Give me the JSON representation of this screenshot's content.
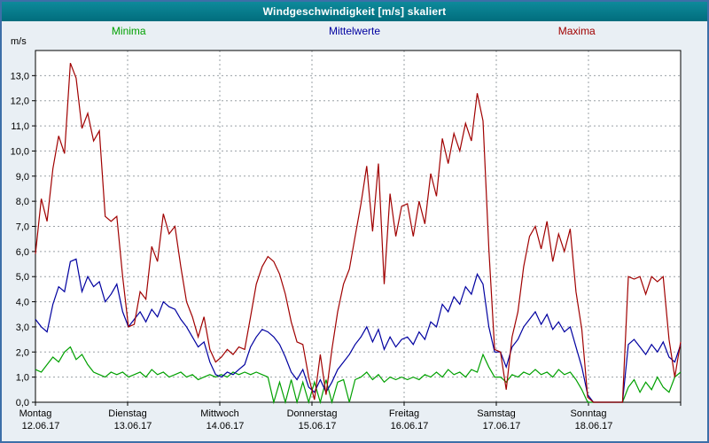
{
  "window": {
    "title": "Windgeschwindigkeit [m/s] skaliert"
  },
  "legend": [
    {
      "label": "Minima",
      "color": "#00a000"
    },
    {
      "label": "Mittelwerte",
      "color": "#0000a0"
    },
    {
      "label": "Maxima",
      "color": "#a00000"
    }
  ],
  "chart_data": {
    "type": "line",
    "title": "Windgeschwindigkeit [m/s] skaliert",
    "ylabel": "m/s",
    "ylim": [
      0,
      14
    ],
    "ytick_step": 1.0,
    "ytick_labels": [
      "0,0",
      "1,0",
      "2,0",
      "3,0",
      "4,0",
      "5,0",
      "6,0",
      "7,0",
      "8,0",
      "9,0",
      "10,0",
      "11,0",
      "12,0",
      "13,0"
    ],
    "grid": true,
    "legend_position": "top",
    "x_days": [
      {
        "weekday": "Montag",
        "date": "12.06.17"
      },
      {
        "weekday": "Dienstag",
        "date": "13.06.17"
      },
      {
        "weekday": "Mittwoch",
        "date": "14.06.17"
      },
      {
        "weekday": "Donnerstag",
        "date": "15.06.17"
      },
      {
        "weekday": "Freitag",
        "date": "16.06.17"
      },
      {
        "weekday": "Samstag",
        "date": "17.06.17"
      },
      {
        "weekday": "Sonntag",
        "date": "18.06.17"
      }
    ],
    "points_per_day": 16,
    "series": [
      {
        "name": "Minima",
        "color": "#00a000",
        "values": [
          1.3,
          1.2,
          1.5,
          1.8,
          1.6,
          2.0,
          2.2,
          1.7,
          1.9,
          1.5,
          1.2,
          1.1,
          1.0,
          1.2,
          1.1,
          1.2,
          1.0,
          1.1,
          1.2,
          1.0,
          1.3,
          1.1,
          1.2,
          1.0,
          1.1,
          1.2,
          1.0,
          1.1,
          0.9,
          1.0,
          1.1,
          1.0,
          1.1,
          1.0,
          1.2,
          1.1,
          1.2,
          1.1,
          1.2,
          1.1,
          1.0,
          0.0,
          0.8,
          0.0,
          0.9,
          0.0,
          0.8,
          0.0,
          0.8,
          0.0,
          0.9,
          0.0,
          0.8,
          0.9,
          0.0,
          0.9,
          1.0,
          1.2,
          0.9,
          1.1,
          0.8,
          1.0,
          0.9,
          1.0,
          0.9,
          1.0,
          0.9,
          1.1,
          1.0,
          1.2,
          1.0,
          1.3,
          1.1,
          1.2,
          1.0,
          1.3,
          1.2,
          1.9,
          1.4,
          1.0,
          1.0,
          0.8,
          1.1,
          1.0,
          1.2,
          1.1,
          1.3,
          1.1,
          1.2,
          1.0,
          1.3,
          1.1,
          1.2,
          0.9,
          0.5,
          0.0,
          0.0,
          0.0,
          0.0,
          0.0,
          0.0,
          0.0,
          0.6,
          0.9,
          0.4,
          0.8,
          0.5,
          1.0,
          0.6,
          0.4,
          1.0,
          1.2
        ]
      },
      {
        "name": "Mittelwerte",
        "color": "#0000a0",
        "values": [
          3.3,
          3.0,
          2.8,
          3.9,
          4.6,
          4.4,
          5.6,
          5.7,
          4.4,
          5.0,
          4.6,
          4.8,
          4.0,
          4.3,
          4.7,
          3.6,
          3.0,
          3.3,
          3.6,
          3.2,
          3.7,
          3.4,
          4.0,
          3.8,
          3.7,
          3.3,
          3.0,
          2.6,
          2.2,
          2.4,
          1.6,
          1.1,
          1.0,
          1.2,
          1.1,
          1.3,
          1.5,
          2.2,
          2.6,
          2.9,
          2.8,
          2.6,
          2.3,
          1.8,
          1.2,
          0.9,
          1.3,
          0.6,
          0.4,
          0.9,
          0.4,
          0.8,
          1.3,
          1.6,
          1.9,
          2.3,
          2.6,
          3.0,
          2.4,
          2.9,
          2.1,
          2.6,
          2.2,
          2.5,
          2.6,
          2.3,
          2.8,
          2.5,
          3.2,
          3.0,
          3.9,
          3.6,
          4.2,
          3.9,
          4.6,
          4.3,
          5.1,
          4.7,
          3.0,
          2.0,
          2.0,
          1.4,
          2.2,
          2.5,
          3.0,
          3.3,
          3.6,
          3.1,
          3.5,
          2.9,
          3.2,
          2.8,
          3.0,
          2.2,
          1.4,
          0.3,
          0.0,
          0.0,
          0.0,
          0.0,
          0.0,
          0.0,
          2.3,
          2.5,
          2.2,
          1.9,
          2.3,
          2.0,
          2.4,
          1.8,
          1.6,
          2.3
        ]
      },
      {
        "name": "Maxima",
        "color": "#a00000",
        "values": [
          5.9,
          8.1,
          7.2,
          9.3,
          10.6,
          9.9,
          13.5,
          12.9,
          10.9,
          11.5,
          10.4,
          10.8,
          7.4,
          7.2,
          7.4,
          5.0,
          3.0,
          3.1,
          4.4,
          4.1,
          6.2,
          5.6,
          7.5,
          6.7,
          7.0,
          5.4,
          4.0,
          3.4,
          2.6,
          3.4,
          2.1,
          1.6,
          1.8,
          2.1,
          1.9,
          2.2,
          2.1,
          3.4,
          4.7,
          5.4,
          5.8,
          5.6,
          5.1,
          4.3,
          3.2,
          2.4,
          2.3,
          1.0,
          0.1,
          1.9,
          0.3,
          2.1,
          3.6,
          4.7,
          5.3,
          6.6,
          7.9,
          9.4,
          6.8,
          9.5,
          4.7,
          8.3,
          6.6,
          7.8,
          7.9,
          6.6,
          8.0,
          7.1,
          9.1,
          8.2,
          10.5,
          9.5,
          10.7,
          10.0,
          11.1,
          10.4,
          12.3,
          11.2,
          6.1,
          2.1,
          2.0,
          0.5,
          2.6,
          3.6,
          5.4,
          6.6,
          7.0,
          6.1,
          7.2,
          5.6,
          6.7,
          6.0,
          6.9,
          4.4,
          2.9,
          0.2,
          0.0,
          0.0,
          0.0,
          0.0,
          0.0,
          0.0,
          5.0,
          4.9,
          5.0,
          4.3,
          5.0,
          4.8,
          5.0,
          2.5,
          1.0,
          2.4
        ]
      }
    ]
  }
}
